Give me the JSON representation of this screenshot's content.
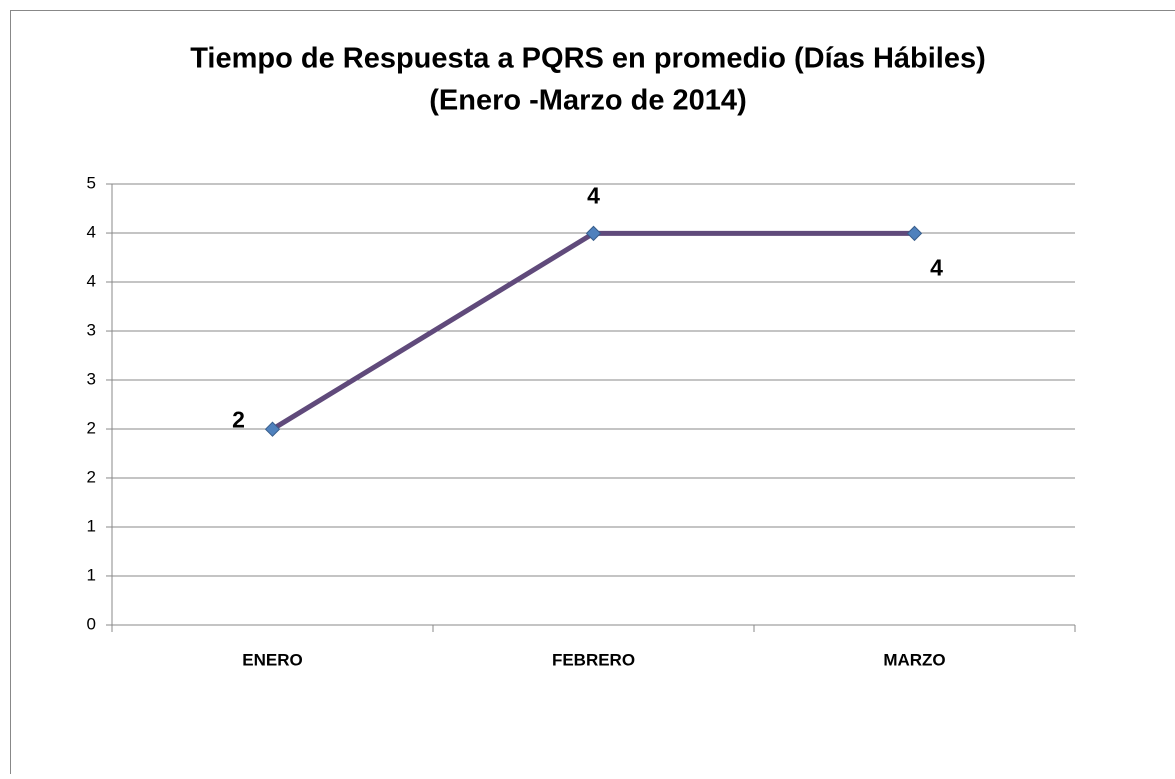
{
  "chart_data": {
    "type": "line",
    "title": "Tiempo de Respuesta a PQRS en promedio (Días Hábiles)",
    "subtitle": "(Enero -Marzo de 2014)",
    "categories": [
      "ENERO",
      "FEBRERO",
      "MARZO"
    ],
    "series": [
      {
        "name": "Tiempo de Respuesta",
        "color": "#604a7b",
        "marker_color": "#4f81bd",
        "values": [
          2.22,
          4.44,
          4.44
        ],
        "value_labels": [
          "2",
          "4",
          "4"
        ]
      }
    ],
    "ylim": [
      0,
      5
    ],
    "yticks": [
      0,
      {
        "value": 0.556,
        "label": "1"
      },
      {
        "value": 1.111,
        "label": "1"
      },
      {
        "value": 1.667,
        "label": "2"
      },
      {
        "value": 2.222,
        "label": "2"
      },
      {
        "value": 2.778,
        "label": "3"
      },
      {
        "value": 3.333,
        "label": "3"
      },
      {
        "value": 3.889,
        "label": "4"
      },
      {
        "value": 4.444,
        "label": "4"
      },
      5
    ],
    "grid": true
  }
}
